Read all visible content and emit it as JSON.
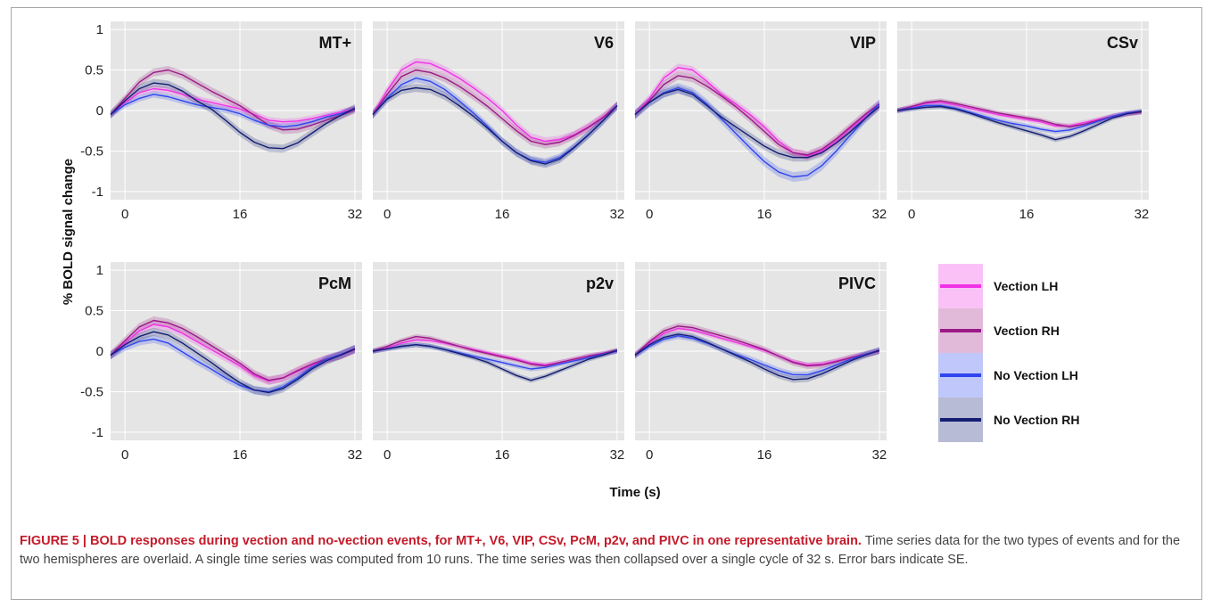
{
  "figure_label": "FIGURE 5 | BOLD responses during vection and no-vection events, for MT+, V6, VIP, CSv, PcM, p2v, and PIVC in one representative brain.",
  "caption_text": " Time series data for the two types of events and for the two hemispheres are overlaid. A single time series was computed from 10 runs. The time series was then collapsed over a single cycle of 32 s. Error bars indicate SE.",
  "colors": {
    "panel_bg": "#e5e5e5",
    "vection_lh": "#f032e6",
    "vection_rh": "#9a1a86",
    "novection_lh": "#2f45ee",
    "novection_rh": "#141e73"
  },
  "chart_data": {
    "type": "line",
    "xlabel": "Time (s)",
    "ylabel": "% BOLD signal change",
    "xlim": [
      -2,
      33
    ],
    "ylim": [
      -1.1,
      1.1
    ],
    "xticks": [
      0,
      16,
      32
    ],
    "yticks": [
      1,
      0.5,
      0,
      -0.5,
      -1
    ],
    "ytick_labels": [
      "1",
      "0.5",
      "0",
      "-0.5",
      "-1"
    ],
    "grid": true,
    "legend": {
      "placement": "right",
      "entries": [
        "Vection LH",
        "Vection RH",
        "No Vection LH",
        "No Vection RH"
      ]
    },
    "x": [
      -2,
      0,
      2,
      4,
      6,
      8,
      10,
      12,
      14,
      16,
      18,
      20,
      22,
      24,
      26,
      28,
      30,
      32
    ],
    "panels": [
      {
        "name": "MT+",
        "series": [
          {
            "name": "Vection LH",
            "values": [
              -0.05,
              0.1,
              0.22,
              0.27,
              0.25,
              0.2,
              0.14,
              0.1,
              0.06,
              0.02,
              -0.05,
              -0.12,
              -0.14,
              -0.13,
              -0.1,
              -0.06,
              -0.02,
              0.02
            ],
            "se": 0.04
          },
          {
            "name": "Vection RH",
            "values": [
              -0.05,
              0.15,
              0.35,
              0.47,
              0.5,
              0.44,
              0.34,
              0.24,
              0.15,
              0.06,
              -0.06,
              -0.18,
              -0.24,
              -0.23,
              -0.18,
              -0.12,
              -0.06,
              0.01
            ],
            "se": 0.05
          },
          {
            "name": "No Vection LH",
            "values": [
              -0.05,
              0.07,
              0.15,
              0.2,
              0.17,
              0.12,
              0.07,
              0.04,
              0.01,
              -0.04,
              -0.12,
              -0.18,
              -0.2,
              -0.18,
              -0.14,
              -0.08,
              -0.04,
              0.02
            ],
            "se": 0.04
          },
          {
            "name": "No Vection RH",
            "values": [
              -0.05,
              0.12,
              0.27,
              0.34,
              0.32,
              0.24,
              0.12,
              0.02,
              -0.12,
              -0.27,
              -0.39,
              -0.46,
              -0.47,
              -0.4,
              -0.28,
              -0.16,
              -0.06,
              0.03
            ],
            "se": 0.05
          }
        ]
      },
      {
        "name": "V6",
        "series": [
          {
            "name": "Vection LH",
            "values": [
              -0.05,
              0.25,
              0.5,
              0.6,
              0.58,
              0.5,
              0.4,
              0.28,
              0.15,
              0.0,
              -0.18,
              -0.33,
              -0.38,
              -0.36,
              -0.3,
              -0.2,
              -0.08,
              0.06
            ],
            "se": 0.05
          },
          {
            "name": "Vection RH",
            "values": [
              -0.05,
              0.2,
              0.42,
              0.5,
              0.47,
              0.4,
              0.3,
              0.18,
              0.05,
              -0.1,
              -0.25,
              -0.38,
              -0.42,
              -0.39,
              -0.31,
              -0.21,
              -0.09,
              0.06
            ],
            "se": 0.05
          },
          {
            "name": "No Vection LH",
            "values": [
              -0.05,
              0.15,
              0.32,
              0.4,
              0.36,
              0.26,
              0.12,
              -0.03,
              -0.2,
              -0.38,
              -0.52,
              -0.61,
              -0.64,
              -0.58,
              -0.45,
              -0.3,
              -0.13,
              0.06
            ],
            "se": 0.05
          },
          {
            "name": "No Vection RH",
            "values": [
              -0.05,
              0.14,
              0.25,
              0.28,
              0.26,
              0.18,
              0.06,
              -0.07,
              -0.22,
              -0.38,
              -0.52,
              -0.62,
              -0.66,
              -0.6,
              -0.46,
              -0.3,
              -0.13,
              0.06
            ],
            "se": 0.05
          }
        ]
      },
      {
        "name": "VIP",
        "series": [
          {
            "name": "Vection LH",
            "values": [
              -0.05,
              0.15,
              0.4,
              0.53,
              0.5,
              0.36,
              0.2,
              0.08,
              -0.05,
              -0.2,
              -0.38,
              -0.52,
              -0.56,
              -0.5,
              -0.38,
              -0.22,
              -0.08,
              0.06
            ],
            "se": 0.05
          },
          {
            "name": "Vection RH",
            "values": [
              -0.05,
              0.12,
              0.32,
              0.43,
              0.4,
              0.3,
              0.18,
              0.05,
              -0.1,
              -0.26,
              -0.42,
              -0.52,
              -0.55,
              -0.48,
              -0.35,
              -0.2,
              -0.05,
              0.08
            ],
            "se": 0.05
          },
          {
            "name": "No Vection LH",
            "values": [
              -0.05,
              0.1,
              0.22,
              0.28,
              0.22,
              0.08,
              -0.1,
              -0.28,
              -0.46,
              -0.63,
              -0.76,
              -0.82,
              -0.8,
              -0.68,
              -0.5,
              -0.3,
              -0.1,
              0.08
            ],
            "se": 0.06
          },
          {
            "name": "No Vection RH",
            "values": [
              -0.05,
              0.1,
              0.21,
              0.26,
              0.2,
              0.06,
              -0.08,
              -0.2,
              -0.32,
              -0.44,
              -0.53,
              -0.58,
              -0.58,
              -0.52,
              -0.4,
              -0.26,
              -0.1,
              0.05
            ],
            "se": 0.05
          }
        ]
      },
      {
        "name": "CSv",
        "series": [
          {
            "name": "Vection LH",
            "values": [
              0.0,
              0.04,
              0.09,
              0.1,
              0.07,
              0.03,
              -0.01,
              -0.05,
              -0.08,
              -0.11,
              -0.14,
              -0.19,
              -0.19,
              -0.15,
              -0.11,
              -0.07,
              -0.04,
              -0.02
            ],
            "se": 0.03
          },
          {
            "name": "Vection RH",
            "values": [
              0.0,
              0.05,
              0.1,
              0.12,
              0.09,
              0.05,
              0.01,
              -0.03,
              -0.06,
              -0.09,
              -0.12,
              -0.17,
              -0.2,
              -0.17,
              -0.12,
              -0.07,
              -0.04,
              -0.02
            ],
            "se": 0.03
          },
          {
            "name": "No Vection LH",
            "values": [
              0.0,
              0.03,
              0.06,
              0.06,
              0.03,
              -0.02,
              -0.07,
              -0.12,
              -0.16,
              -0.19,
              -0.23,
              -0.26,
              -0.24,
              -0.19,
              -0.13,
              -0.07,
              -0.03,
              -0.01
            ],
            "se": 0.03
          },
          {
            "name": "No Vection RH",
            "values": [
              0.0,
              0.02,
              0.04,
              0.05,
              0.02,
              -0.03,
              -0.09,
              -0.15,
              -0.2,
              -0.25,
              -0.3,
              -0.36,
              -0.32,
              -0.25,
              -0.17,
              -0.09,
              -0.04,
              -0.01
            ],
            "se": 0.03
          }
        ]
      },
      {
        "name": "PcM",
        "series": [
          {
            "name": "Vection LH",
            "values": [
              -0.05,
              0.1,
              0.25,
              0.33,
              0.3,
              0.22,
              0.12,
              0.02,
              -0.08,
              -0.18,
              -0.3,
              -0.37,
              -0.33,
              -0.25,
              -0.17,
              -0.1,
              -0.05,
              0.02
            ],
            "se": 0.05
          },
          {
            "name": "Vection RH",
            "values": [
              -0.05,
              0.13,
              0.3,
              0.38,
              0.35,
              0.28,
              0.18,
              0.07,
              -0.04,
              -0.15,
              -0.28,
              -0.36,
              -0.33,
              -0.24,
              -0.16,
              -0.1,
              -0.05,
              0.02
            ],
            "se": 0.05
          },
          {
            "name": "No Vection LH",
            "values": [
              -0.05,
              0.05,
              0.12,
              0.15,
              0.1,
              -0.01,
              -0.12,
              -0.22,
              -0.33,
              -0.42,
              -0.48,
              -0.5,
              -0.44,
              -0.33,
              -0.2,
              -0.1,
              -0.04,
              0.03
            ],
            "se": 0.05
          },
          {
            "name": "No Vection RH",
            "values": [
              -0.05,
              0.08,
              0.18,
              0.24,
              0.2,
              0.1,
              -0.02,
              -0.14,
              -0.27,
              -0.39,
              -0.48,
              -0.51,
              -0.46,
              -0.35,
              -0.22,
              -0.12,
              -0.05,
              0.03
            ],
            "se": 0.05
          }
        ]
      },
      {
        "name": "p2v",
        "series": [
          {
            "name": "Vection LH",
            "values": [
              0.0,
              0.04,
              0.1,
              0.14,
              0.13,
              0.1,
              0.06,
              0.02,
              -0.02,
              -0.06,
              -0.1,
              -0.15,
              -0.17,
              -0.14,
              -0.1,
              -0.06,
              -0.03,
              0.0
            ],
            "se": 0.03
          },
          {
            "name": "Vection RH",
            "values": [
              0.0,
              0.06,
              0.13,
              0.18,
              0.16,
              0.11,
              0.06,
              0.01,
              -0.03,
              -0.07,
              -0.11,
              -0.16,
              -0.18,
              -0.14,
              -0.1,
              -0.06,
              -0.03,
              0.01
            ],
            "se": 0.03
          },
          {
            "name": "No Vection LH",
            "values": [
              0.0,
              0.03,
              0.06,
              0.08,
              0.06,
              0.02,
              -0.02,
              -0.06,
              -0.1,
              -0.14,
              -0.18,
              -0.22,
              -0.2,
              -0.16,
              -0.12,
              -0.08,
              -0.04,
              0.0
            ],
            "se": 0.03
          },
          {
            "name": "No Vection RH",
            "values": [
              0.0,
              0.03,
              0.06,
              0.08,
              0.06,
              0.02,
              -0.03,
              -0.08,
              -0.14,
              -0.22,
              -0.3,
              -0.36,
              -0.31,
              -0.24,
              -0.17,
              -0.1,
              -0.05,
              0.01
            ],
            "se": 0.03
          }
        ]
      },
      {
        "name": "PIVC",
        "series": [
          {
            "name": "Vection LH",
            "values": [
              -0.05,
              0.1,
              0.22,
              0.28,
              0.26,
              0.21,
              0.16,
              0.11,
              0.06,
              0.01,
              -0.06,
              -0.13,
              -0.17,
              -0.16,
              -0.12,
              -0.08,
              -0.04,
              0.0
            ],
            "se": 0.03
          },
          {
            "name": "Vection RH",
            "values": [
              -0.05,
              0.12,
              0.25,
              0.31,
              0.29,
              0.24,
              0.19,
              0.14,
              0.08,
              0.02,
              -0.06,
              -0.14,
              -0.18,
              -0.17,
              -0.13,
              -0.08,
              -0.04,
              0.0
            ],
            "se": 0.04
          },
          {
            "name": "No Vection LH",
            "values": [
              -0.05,
              0.06,
              0.15,
              0.19,
              0.16,
              0.1,
              0.03,
              -0.04,
              -0.1,
              -0.17,
              -0.24,
              -0.29,
              -0.29,
              -0.24,
              -0.17,
              -0.1,
              -0.04,
              0.01
            ],
            "se": 0.04
          },
          {
            "name": "No Vection RH",
            "values": [
              -0.05,
              0.08,
              0.17,
              0.21,
              0.18,
              0.11,
              0.03,
              -0.05,
              -0.13,
              -0.22,
              -0.3,
              -0.35,
              -0.34,
              -0.28,
              -0.2,
              -0.12,
              -0.05,
              0.01
            ],
            "se": 0.04
          }
        ]
      }
    ]
  }
}
